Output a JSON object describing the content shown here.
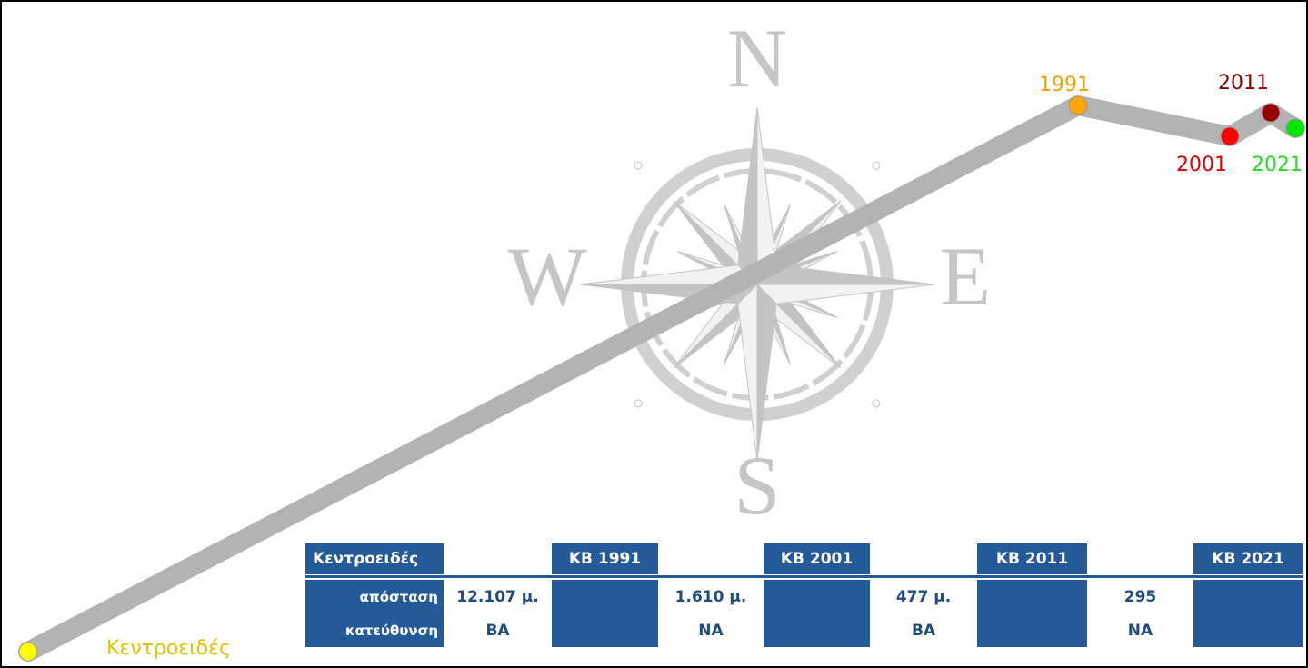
{
  "compass": {
    "north": "N",
    "west": "W",
    "east": "E",
    "south": "S"
  },
  "points": [
    {
      "label": "Κεντροειδές"
    },
    {
      "label": "1991"
    },
    {
      "label": "2001"
    },
    {
      "label": "2011"
    },
    {
      "label": "2021"
    }
  ],
  "table": {
    "header": [
      "Κεντροειδές",
      "KB 1991",
      "KB 2001",
      "KB 2011",
      "KB 2021"
    ],
    "distance_label": "απόσταση",
    "distances": [
      "12.107 μ.",
      "1.610 μ.",
      "477 μ.",
      "295"
    ],
    "direction_label": "κατεύθυνση",
    "directions": [
      "ΒΑ",
      "ΝΑ",
      "ΒΑ",
      "ΝΑ"
    ]
  }
}
